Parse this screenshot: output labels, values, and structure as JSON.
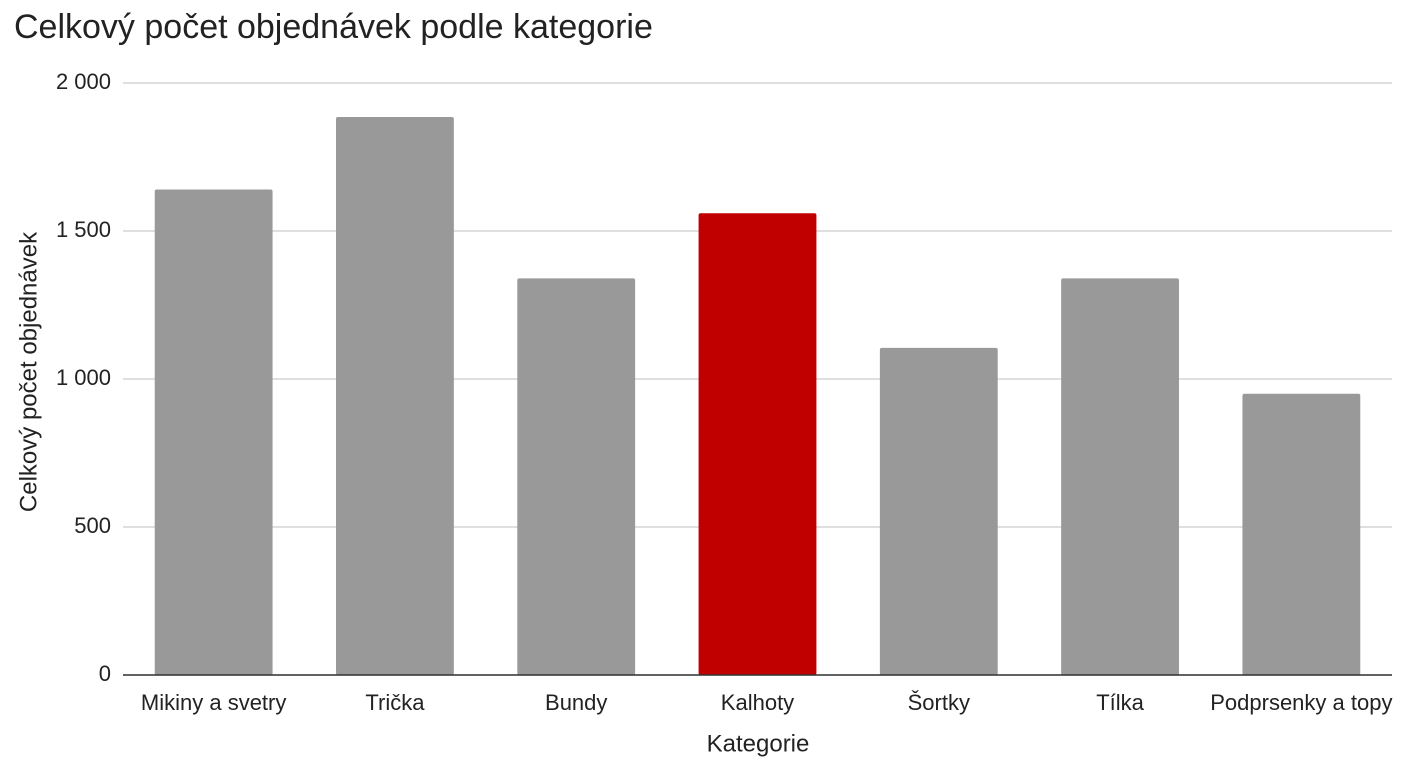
{
  "chart_data": {
    "type": "bar",
    "title": "Celkový počet objednávek podle kategorie",
    "x_label": "Kategorie",
    "y_label": "Celkový počet objednávek",
    "categories": [
      "Mikiny a svetry",
      "Trička",
      "Bundy",
      "Kalhoty",
      "Šortky",
      "Tílka",
      "Podprsenky a topy"
    ],
    "values": [
      1640,
      1885,
      1340,
      1560,
      1105,
      1340,
      950
    ],
    "colors": [
      "#999999",
      "#999999",
      "#999999",
      "#c00000",
      "#999999",
      "#999999",
      "#999999"
    ],
    "ylim": [
      0,
      2000
    ],
    "yticks": [
      0,
      500,
      {
        "value": 1000,
        "label": "1 000"
      },
      {
        "value": 1500,
        "label": "1 500"
      },
      {
        "value": 2000,
        "label": "2 000"
      }
    ],
    "grid": true
  }
}
